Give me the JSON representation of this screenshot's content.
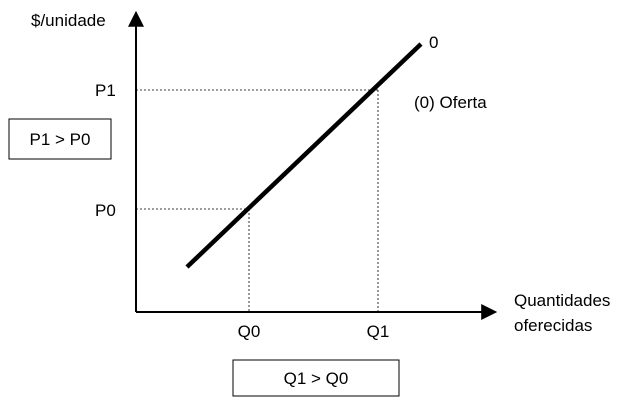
{
  "diagram": {
    "y_axis_label": "$/unidade",
    "x_axis_label_line1": "Quantidades",
    "x_axis_label_line2": "oferecidas",
    "curve_end_label": "0",
    "legend_text": "(0) Oferta",
    "price_ticks": [
      "P1",
      "P0"
    ],
    "quantity_ticks": [
      "Q0",
      "Q1"
    ],
    "price_box": "P1 > P0",
    "quantity_box": "Q1 > Q0"
  },
  "colors": {
    "line": "#000000",
    "background": "#ffffff"
  }
}
